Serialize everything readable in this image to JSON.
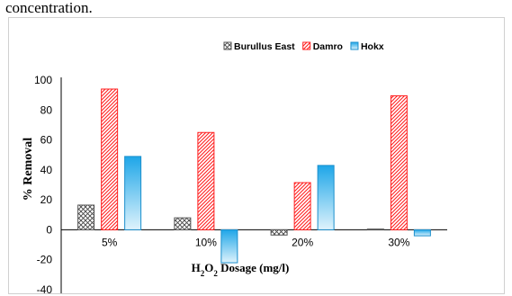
{
  "header_text": "concentration.",
  "chart_data": {
    "type": "bar",
    "categories": [
      "5%",
      "10%",
      "20%",
      "30%"
    ],
    "series": [
      {
        "name": "Burullus East",
        "values": [
          16.5,
          8,
          -3.5,
          0.5
        ],
        "color": "#888888",
        "pattern": "crosshatch"
      },
      {
        "name": "Damro",
        "values": [
          94,
          65,
          31.5,
          89.5
        ],
        "color": "#ff2020",
        "pattern": "diagonal"
      },
      {
        "name": "Hokx",
        "values": [
          49,
          -22,
          43,
          -4
        ],
        "color": "#1ea6e8",
        "pattern": "gradient"
      }
    ],
    "title": "",
    "xlabel": "Dosage (mg/l)",
    "xlabel_chem": {
      "main": "H",
      "sub1": "2",
      "mid": "O",
      "sub2": "2"
    },
    "ylabel": "% Removal",
    "ylim": [
      -40,
      100
    ],
    "yticks": [
      "-40",
      "-20",
      "0",
      "20",
      "40",
      "60",
      "80",
      "100"
    ],
    "grid": false,
    "legend_position": "top-right"
  }
}
